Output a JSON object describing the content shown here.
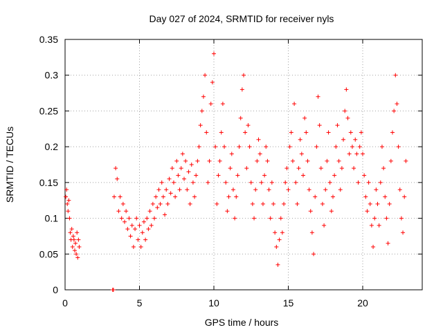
{
  "chart_data": {
    "type": "scatter",
    "title": "Day 027 of 2024, SRMTID for receiver nyls",
    "xlabel": "GPS time / hours",
    "ylabel": "SRMTID / TECUs",
    "xlim": [
      0,
      24
    ],
    "ylim": [
      0,
      0.35
    ],
    "xticks": [
      0,
      5,
      10,
      15,
      20
    ],
    "xtick_labels": [
      "0",
      "5",
      "10",
      "15",
      "20"
    ],
    "yticks": [
      0,
      0.05,
      0.1,
      0.15,
      0.2,
      0.25,
      0.3,
      0.35
    ],
    "ytick_labels": [
      "0",
      "0.05",
      "0.1",
      "0.15",
      "0.2",
      "0.25",
      "0.3",
      "0.35"
    ],
    "grid": true,
    "marker": "plus",
    "color": "#ff0000",
    "series": [
      {
        "name": "nyls",
        "points": [
          [
            0.05,
            0.13
          ],
          [
            0.1,
            0.14
          ],
          [
            0.15,
            0.12
          ],
          [
            0.2,
            0.11
          ],
          [
            0.25,
            0.125
          ],
          [
            0.3,
            0.1
          ],
          [
            0.35,
            0.08
          ],
          [
            0.4,
            0.07
          ],
          [
            0.45,
            0.085
          ],
          [
            0.5,
            0.06
          ],
          [
            0.55,
            0.075
          ],
          [
            0.6,
            0.07
          ],
          [
            0.65,
            0.055
          ],
          [
            0.7,
            0.065
          ],
          [
            0.75,
            0.05
          ],
          [
            0.8,
            0.08
          ],
          [
            0.85,
            0.045
          ],
          [
            0.9,
            0.07
          ],
          [
            0.95,
            0.06
          ],
          [
            3.2,
            0.0
          ],
          [
            3.25,
            0.0
          ],
          [
            3.3,
            0.13
          ],
          [
            3.4,
            0.17
          ],
          [
            3.5,
            0.155
          ],
          [
            3.6,
            0.11
          ],
          [
            3.7,
            0.13
          ],
          [
            3.8,
            0.1
          ],
          [
            3.9,
            0.12
          ],
          [
            4.0,
            0.095
          ],
          [
            4.1,
            0.11
          ],
          [
            4.2,
            0.085
          ],
          [
            4.3,
            0.1
          ],
          [
            4.4,
            0.075
          ],
          [
            4.5,
            0.09
          ],
          [
            4.6,
            0.06
          ],
          [
            4.7,
            0.085
          ],
          [
            4.8,
            0.1
          ],
          [
            4.9,
            0.07
          ],
          [
            5.0,
            0.09
          ],
          [
            5.1,
            0.06
          ],
          [
            5.2,
            0.08
          ],
          [
            5.3,
            0.095
          ],
          [
            5.4,
            0.07
          ],
          [
            5.5,
            0.1
          ],
          [
            5.6,
            0.085
          ],
          [
            5.7,
            0.11
          ],
          [
            5.8,
            0.09
          ],
          [
            5.9,
            0.12
          ],
          [
            6.0,
            0.1
          ],
          [
            6.1,
            0.13
          ],
          [
            6.2,
            0.115
          ],
          [
            6.3,
            0.14
          ],
          [
            6.4,
            0.12
          ],
          [
            6.5,
            0.15
          ],
          [
            6.6,
            0.13
          ],
          [
            6.7,
            0.105
          ],
          [
            6.8,
            0.14
          ],
          [
            6.9,
            0.12
          ],
          [
            7.0,
            0.155
          ],
          [
            7.1,
            0.135
          ],
          [
            7.2,
            0.17
          ],
          [
            7.3,
            0.15
          ],
          [
            7.4,
            0.13
          ],
          [
            7.5,
            0.18
          ],
          [
            7.6,
            0.16
          ],
          [
            7.7,
            0.14
          ],
          [
            7.8,
            0.17
          ],
          [
            7.9,
            0.19
          ],
          [
            8.0,
            0.155
          ],
          [
            8.1,
            0.18
          ],
          [
            8.2,
            0.14
          ],
          [
            8.3,
            0.165
          ],
          [
            8.4,
            0.12
          ],
          [
            8.5,
            0.175
          ],
          [
            8.6,
            0.15
          ],
          [
            8.7,
            0.13
          ],
          [
            8.8,
            0.16
          ],
          [
            8.9,
            0.18
          ],
          [
            9.0,
            0.2
          ],
          [
            9.1,
            0.23
          ],
          [
            9.2,
            0.25
          ],
          [
            9.3,
            0.27
          ],
          [
            9.4,
            0.3
          ],
          [
            9.5,
            0.22
          ],
          [
            9.6,
            0.15
          ],
          [
            9.7,
            0.18
          ],
          [
            9.8,
            0.26
          ],
          [
            9.9,
            0.29
          ],
          [
            10.0,
            0.33
          ],
          [
            10.1,
            0.2
          ],
          [
            10.2,
            0.12
          ],
          [
            10.3,
            0.16
          ],
          [
            10.4,
            0.18
          ],
          [
            10.5,
            0.22
          ],
          [
            10.6,
            0.26
          ],
          [
            10.7,
            0.2
          ],
          [
            10.8,
            0.15
          ],
          [
            10.9,
            0.11
          ],
          [
            11.0,
            0.13
          ],
          [
            11.1,
            0.17
          ],
          [
            11.2,
            0.19
          ],
          [
            11.3,
            0.14
          ],
          [
            11.4,
            0.1
          ],
          [
            11.5,
            0.13
          ],
          [
            11.6,
            0.16
          ],
          [
            11.7,
            0.2
          ],
          [
            11.8,
            0.24
          ],
          [
            11.9,
            0.28
          ],
          [
            12.0,
            0.3
          ],
          [
            12.1,
            0.22
          ],
          [
            12.2,
            0.17
          ],
          [
            12.3,
            0.23
          ],
          [
            12.4,
            0.2
          ],
          [
            12.5,
            0.15
          ],
          [
            12.6,
            0.12
          ],
          [
            12.7,
            0.1
          ],
          [
            12.8,
            0.14
          ],
          [
            12.9,
            0.18
          ],
          [
            13.0,
            0.21
          ],
          [
            13.1,
            0.19
          ],
          [
            13.2,
            0.15
          ],
          [
            13.3,
            0.12
          ],
          [
            13.4,
            0.16
          ],
          [
            13.5,
            0.2
          ],
          [
            13.6,
            0.18
          ],
          [
            13.7,
            0.14
          ],
          [
            13.8,
            0.1
          ],
          [
            13.9,
            0.15
          ],
          [
            14.0,
            0.12
          ],
          [
            14.1,
            0.08
          ],
          [
            14.2,
            0.06
          ],
          [
            14.3,
            0.035
          ],
          [
            14.4,
            0.07
          ],
          [
            14.5,
            0.1
          ],
          [
            14.6,
            0.08
          ],
          [
            14.7,
            0.12
          ],
          [
            14.8,
            0.15
          ],
          [
            14.9,
            0.17
          ],
          [
            15.0,
            0.14
          ],
          [
            15.1,
            0.2
          ],
          [
            15.2,
            0.22
          ],
          [
            15.3,
            0.18
          ],
          [
            15.4,
            0.26
          ],
          [
            15.5,
            0.15
          ],
          [
            15.6,
            0.12
          ],
          [
            15.7,
            0.17
          ],
          [
            15.8,
            0.21
          ],
          [
            15.9,
            0.19
          ],
          [
            16.0,
            0.16
          ],
          [
            16.1,
            0.24
          ],
          [
            16.2,
            0.22
          ],
          [
            16.3,
            0.18
          ],
          [
            16.4,
            0.14
          ],
          [
            16.5,
            0.11
          ],
          [
            16.6,
            0.08
          ],
          [
            16.7,
            0.05
          ],
          [
            16.8,
            0.13
          ],
          [
            16.9,
            0.2
          ],
          [
            17.0,
            0.27
          ],
          [
            17.1,
            0.23
          ],
          [
            17.2,
            0.17
          ],
          [
            17.3,
            0.12
          ],
          [
            17.4,
            0.09
          ],
          [
            17.5,
            0.14
          ],
          [
            17.6,
            0.18
          ],
          [
            17.7,
            0.22
          ],
          [
            17.8,
            0.15
          ],
          [
            17.9,
            0.11
          ],
          [
            18.0,
            0.13
          ],
          [
            18.1,
            0.16
          ],
          [
            18.2,
            0.2
          ],
          [
            18.3,
            0.23
          ],
          [
            18.4,
            0.18
          ],
          [
            18.5,
            0.14
          ],
          [
            18.6,
            0.17
          ],
          [
            18.7,
            0.21
          ],
          [
            18.8,
            0.25
          ],
          [
            18.9,
            0.28
          ],
          [
            19.0,
            0.24
          ],
          [
            19.1,
            0.19
          ],
          [
            19.2,
            0.22
          ],
          [
            19.3,
            0.2
          ],
          [
            19.4,
            0.17
          ],
          [
            19.5,
            0.21
          ],
          [
            19.6,
            0.19
          ],
          [
            19.7,
            0.15
          ],
          [
            19.8,
            0.2
          ],
          [
            19.9,
            0.22
          ],
          [
            20.0,
            0.19
          ],
          [
            20.1,
            0.16
          ],
          [
            20.2,
            0.13
          ],
          [
            20.3,
            0.11
          ],
          [
            20.4,
            0.15
          ],
          [
            20.5,
            0.12
          ],
          [
            20.6,
            0.09
          ],
          [
            20.7,
            0.06
          ],
          [
            20.8,
            0.1
          ],
          [
            20.9,
            0.14
          ],
          [
            21.0,
            0.12
          ],
          [
            21.1,
            0.09
          ],
          [
            21.2,
            0.15
          ],
          [
            21.3,
            0.2
          ],
          [
            21.4,
            0.17
          ],
          [
            21.5,
            0.13
          ],
          [
            21.6,
            0.1
          ],
          [
            21.7,
            0.065
          ],
          [
            21.8,
            0.12
          ],
          [
            21.9,
            0.18
          ],
          [
            22.0,
            0.22
          ],
          [
            22.1,
            0.25
          ],
          [
            22.2,
            0.3
          ],
          [
            22.3,
            0.26
          ],
          [
            22.4,
            0.2
          ],
          [
            22.5,
            0.14
          ],
          [
            22.6,
            0.1
          ],
          [
            22.7,
            0.08
          ],
          [
            22.8,
            0.13
          ],
          [
            22.9,
            0.18
          ]
        ]
      }
    ]
  }
}
